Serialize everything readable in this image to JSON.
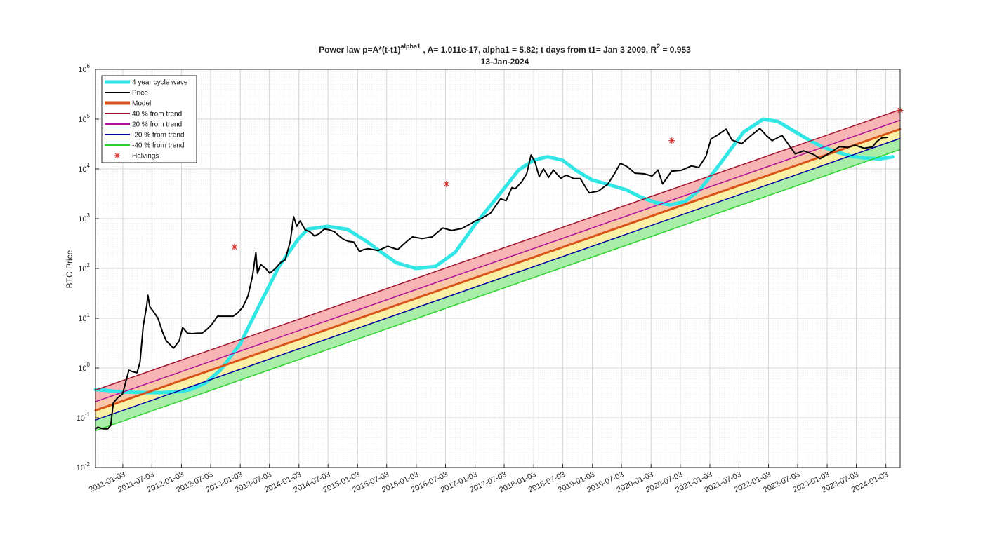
{
  "chart_data": {
    "type": "line",
    "title_main": "Power law p=A*(t-t1)",
    "title_sup": "alpha1",
    "title_rest": " , A= 1.011e-17, alpha1 = 5.82; t days from t1= Jan 3 2009, R",
    "title_r2sup": "2",
    "title_r2val": " = 0.953",
    "subtitle": "13-Jan-2024",
    "ylabel": "BTC Price",
    "y_scale": "log",
    "ylim": [
      0.01,
      1000000
    ],
    "y_tick_exponents": [
      -2,
      -1,
      0,
      1,
      2,
      3,
      4,
      5,
      6
    ],
    "y_tick_base": "10",
    "xlim": [
      "2010-07-17",
      "2024-04-01"
    ],
    "x_ticks": [
      "2011-01-03",
      "2011-07-03",
      "2012-01-03",
      "2012-07-03",
      "2013-01-03",
      "2013-07-03",
      "2014-01-03",
      "2014-07-03",
      "2015-01-03",
      "2015-07-03",
      "2016-01-03",
      "2016-07-03",
      "2017-01-03",
      "2017-07-03",
      "2018-01-03",
      "2018-07-03",
      "2019-01-03",
      "2019-07-03",
      "2020-01-03",
      "2020-07-03",
      "2021-01-03",
      "2021-07-03",
      "2022-01-03",
      "2022-07-03",
      "2023-01-03",
      "2023-07-03",
      "2024-01-03"
    ],
    "model": {
      "A": 1.011e-17,
      "alpha1": 5.82,
      "t1": "2009-01-03",
      "r2": 0.953
    },
    "grid": true,
    "minor_grid": true,
    "legend_position": "top-left",
    "legend": [
      {
        "label": "4 year cycle wave",
        "color": "#33E6E6",
        "width": 5
      },
      {
        "label": "Price",
        "color": "#000000",
        "width": 2
      },
      {
        "label": "Model",
        "color": "#D95319",
        "width": 5
      },
      {
        "label": "40 % from trend",
        "color": "#A2142F",
        "width": 2
      },
      {
        "label": "20 % from trend",
        "color": "#B0109A",
        "width": 2
      },
      {
        "label": "-20 % from trend",
        "color": "#0000A0",
        "width": 2
      },
      {
        "label": "-40 % from trend",
        "color": "#2BD12B",
        "width": 2
      },
      {
        "label": "Halvings",
        "color": "#D93030",
        "marker": "*"
      }
    ],
    "series": [
      {
        "name": "Model",
        "color": "#D95319",
        "x": [
          "2010-07-17",
          "2024-04-01"
        ],
        "y": [
          0.14,
          63000
        ]
      },
      {
        "name": "40 % from trend",
        "color": "#A2142F",
        "x": [
          "2010-07-17",
          "2024-04-01"
        ],
        "y": [
          0.36,
          155000
        ]
      },
      {
        "name": "20 % from trend",
        "color": "#B0109A",
        "x": [
          "2010-07-17",
          "2024-04-01"
        ],
        "y": [
          0.21,
          95000
        ]
      },
      {
        "name": "-20 % from trend",
        "color": "#0000A0",
        "x": [
          "2010-07-17",
          "2024-04-01"
        ],
        "y": [
          0.09,
          41000
        ]
      },
      {
        "name": "-40 % from trend",
        "color": "#2BD12B",
        "x": [
          "2010-07-17",
          "2024-04-01"
        ],
        "y": [
          0.055,
          24500
        ]
      },
      {
        "name": "4 year cycle wave",
        "color": "#33E6E6",
        "x": [
          "2010-07-17",
          "2010-09-01",
          "2011-01-01",
          "2011-06-01",
          "2011-09-01",
          "2012-01-01",
          "2012-03-01",
          "2012-06-01",
          "2012-09-01",
          "2013-01-01",
          "2013-05-01",
          "2013-09-01",
          "2014-01-01",
          "2014-03-01",
          "2014-07-01",
          "2014-11-01",
          "2015-03-01",
          "2015-06-01",
          "2015-09-01",
          "2016-01-01",
          "2016-05-01",
          "2016-09-01",
          "2017-01-01",
          "2017-06-01",
          "2017-10-01",
          "2018-01-01",
          "2018-04-01",
          "2018-07-01",
          "2018-10-01",
          "2019-01-01",
          "2019-04-01",
          "2019-08-01",
          "2019-11-01",
          "2020-02-01",
          "2020-05-01",
          "2020-08-01",
          "2020-11-01",
          "2021-02-01",
          "2021-05-01",
          "2021-08-01",
          "2021-12-01",
          "2022-03-01",
          "2022-06-01",
          "2022-09-01",
          "2022-12-01",
          "2023-03-01",
          "2023-06-01",
          "2023-09-01",
          "2023-12-01",
          "2024-02-15"
        ],
        "y": [
          0.37,
          0.36,
          0.33,
          0.32,
          0.32,
          0.34,
          0.37,
          0.5,
          0.9,
          3,
          18,
          110,
          400,
          620,
          700,
          610,
          350,
          210,
          130,
          100,
          110,
          210,
          750,
          3000,
          9500,
          15000,
          17500,
          15000,
          9000,
          6000,
          5000,
          3800,
          2700,
          2100,
          1900,
          2200,
          3800,
          9000,
          22000,
          55000,
          100000,
          90000,
          60000,
          40000,
          28000,
          22000,
          18000,
          16500,
          16000,
          17500
        ]
      },
      {
        "name": "Price",
        "color": "#000000",
        "x": [
          "2010-07-17",
          "2010-08-01",
          "2010-09-01",
          "2010-10-01",
          "2010-10-20",
          "2010-11-05",
          "2010-12-01",
          "2011-01-01",
          "2011-02-10",
          "2011-03-01",
          "2011-04-01",
          "2011-04-20",
          "2011-05-10",
          "2011-06-01",
          "2011-06-08",
          "2011-06-20",
          "2011-07-10",
          "2011-08-10",
          "2011-09-10",
          "2011-10-01",
          "2011-11-15",
          "2011-12-20",
          "2012-01-10",
          "2012-02-10",
          "2012-03-10",
          "2012-04-10",
          "2012-05-10",
          "2012-06-10",
          "2012-07-10",
          "2012-08-15",
          "2012-09-10",
          "2012-10-20",
          "2012-11-20",
          "2012-12-20",
          "2013-01-20",
          "2013-02-20",
          "2013-03-20",
          "2013-04-10",
          "2013-04-20",
          "2013-05-10",
          "2013-06-10",
          "2013-07-05",
          "2013-08-10",
          "2013-09-10",
          "2013-10-10",
          "2013-11-10",
          "2013-12-01",
          "2013-12-20",
          "2014-01-10",
          "2014-02-10",
          "2014-03-10",
          "2014-04-10",
          "2014-05-10",
          "2014-06-10",
          "2014-07-10",
          "2014-08-10",
          "2014-09-10",
          "2014-10-10",
          "2014-11-10",
          "2014-12-10",
          "2015-01-15",
          "2015-02-10",
          "2015-03-10",
          "2015-05-10",
          "2015-07-10",
          "2015-09-10",
          "2015-11-05",
          "2015-12-10",
          "2016-02-10",
          "2016-04-10",
          "2016-06-15",
          "2016-08-10",
          "2016-10-10",
          "2016-12-10",
          "2017-01-05",
          "2017-02-10",
          "2017-04-10",
          "2017-06-10",
          "2017-07-15",
          "2017-08-20",
          "2017-09-10",
          "2017-10-20",
          "2017-11-20",
          "2017-12-17",
          "2018-01-10",
          "2018-02-06",
          "2018-03-05",
          "2018-04-06",
          "2018-05-05",
          "2018-06-20",
          "2018-07-25",
          "2018-09-10",
          "2018-10-20",
          "2018-11-25",
          "2018-12-15",
          "2019-02-10",
          "2019-04-10",
          "2019-05-20",
          "2019-06-26",
          "2019-08-10",
          "2019-09-25",
          "2019-11-20",
          "2020-01-10",
          "2020-02-15",
          "2020-03-15",
          "2020-05-10",
          "2020-07-10",
          "2020-09-10",
          "2020-10-25",
          "2020-12-10",
          "2021-01-10",
          "2021-02-20",
          "2021-04-14",
          "2021-05-20",
          "2021-07-20",
          "2021-09-10",
          "2021-11-10",
          "2021-12-20",
          "2022-01-25",
          "2022-03-28",
          "2022-05-10",
          "2022-06-18",
          "2022-08-10",
          "2022-10-10",
          "2022-11-20",
          "2023-01-20",
          "2023-03-20",
          "2023-05-10",
          "2023-06-25",
          "2023-08-20",
          "2023-10-10",
          "2023-11-10",
          "2023-12-10",
          "2024-01-13"
        ],
        "y": [
          0.06,
          0.065,
          0.06,
          0.06,
          0.07,
          0.2,
          0.25,
          0.3,
          0.9,
          0.85,
          0.8,
          1.3,
          7,
          18,
          29,
          17,
          14,
          10,
          5,
          3.5,
          2.5,
          3.5,
          6.5,
          5,
          4.9,
          5,
          5,
          6,
          7.5,
          11,
          11,
          11,
          11,
          13,
          17,
          28,
          70,
          210,
          80,
          120,
          100,
          80,
          100,
          130,
          150,
          350,
          1100,
          700,
          900,
          600,
          550,
          450,
          500,
          620,
          600,
          550,
          450,
          380,
          350,
          340,
          220,
          240,
          250,
          230,
          280,
          240,
          350,
          430,
          400,
          430,
          650,
          580,
          630,
          800,
          900,
          1000,
          1300,
          2500,
          2300,
          4200,
          4000,
          5500,
          8000,
          19000,
          14000,
          7000,
          10000,
          6800,
          9500,
          6500,
          7500,
          6400,
          6400,
          4100,
          3300,
          3600,
          5000,
          8000,
          13000,
          11000,
          8200,
          8000,
          7200,
          9500,
          5000,
          9000,
          9400,
          11500,
          10700,
          18000,
          40000,
          48000,
          63000,
          38000,
          32000,
          45000,
          65000,
          47000,
          37000,
          47000,
          30000,
          20000,
          23000,
          19500,
          16000,
          21000,
          28000,
          27000,
          30000,
          26000,
          27500,
          36000,
          42000,
          43000
        ]
      },
      {
        "name": "Halvings",
        "color": "#D93030",
        "type": "scatter",
        "x": [
          "2012-11-28",
          "2016-07-09",
          "2020-05-11",
          "2024-04-01"
        ],
        "y": [
          270,
          5000,
          37000,
          150000
        ]
      }
    ]
  }
}
